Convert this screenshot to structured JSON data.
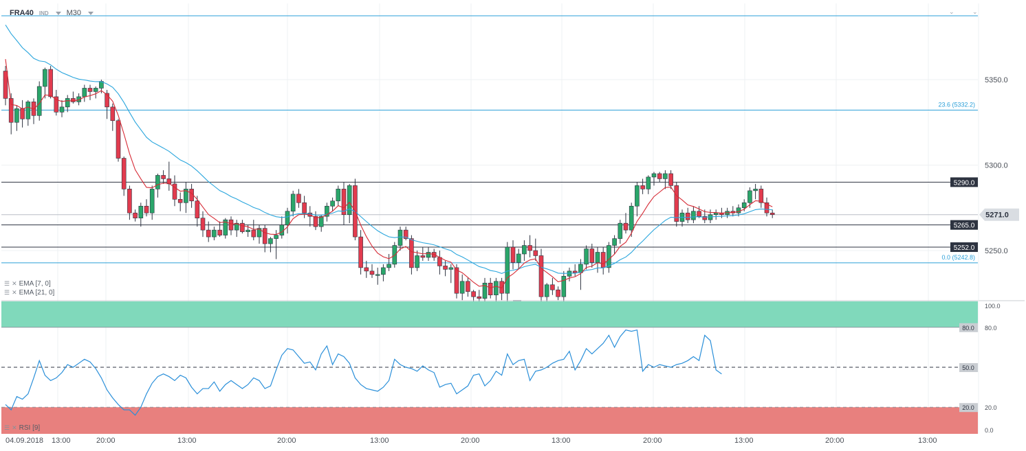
{
  "header": {
    "symbol": "FRA40",
    "symbol_sub": "IND",
    "timeframe": "M30"
  },
  "price_axis": {
    "ticks": [
      "5350.0",
      "5300.0",
      "5250.0"
    ],
    "current_price": "5271.0",
    "current_price_color": "#d9dde2"
  },
  "levels": {
    "fib_top_label": "23.6 (5332.2)",
    "fib_bottom_label": "0.0 (5242.8)",
    "resistance": "5290.0",
    "support_1": "5265.0",
    "support_2": "5252.0"
  },
  "indicators": {
    "ema_fast": "EMA [7, 0]",
    "ema_slow": "EMA [21, 0]",
    "rsi": "RSI [9]",
    "ema_fast_color": "#d62a35",
    "ema_slow_color": "#2aa6dd",
    "rsi_color": "#2a8fd9"
  },
  "rsi_axis": {
    "ticks": [
      "100.0",
      "80.0",
      "50.0",
      "20.0",
      "0.0"
    ]
  },
  "time_axis": {
    "labels": [
      "04.09.2018",
      "13:00",
      "20:00",
      "13:00",
      "20:00",
      "13:00",
      "20:00",
      "13:00",
      "20:00",
      "13:00",
      "20:00",
      "13:00"
    ]
  },
  "colors": {
    "bull": "#2aa66a",
    "bear": "#e23b4e",
    "overbought_zone": "#80d9bb",
    "oversold_zone": "#e8807e"
  },
  "chart_data": {
    "type": "candlestick",
    "ylim": [
      5215,
      5390
    ],
    "candles": [
      [
        5355,
        5358,
        5335,
        5339
      ],
      [
        5339,
        5342,
        5318,
        5325
      ],
      [
        5325,
        5335,
        5320,
        5333
      ],
      [
        5333,
        5338,
        5322,
        5327
      ],
      [
        5327,
        5338,
        5323,
        5337
      ],
      [
        5337,
        5339,
        5324,
        5329
      ],
      [
        5329,
        5349,
        5326,
        5346
      ],
      [
        5346,
        5357,
        5339,
        5356
      ],
      [
        5356,
        5358,
        5339,
        5340
      ],
      [
        5340,
        5344,
        5329,
        5331
      ],
      [
        5331,
        5338,
        5328,
        5334
      ],
      [
        5334,
        5341,
        5331,
        5339
      ],
      [
        5339,
        5343,
        5336,
        5337
      ],
      [
        5337,
        5342,
        5335,
        5340
      ],
      [
        5340,
        5347,
        5337,
        5345
      ],
      [
        5345,
        5347,
        5338,
        5343
      ],
      [
        5343,
        5346,
        5339,
        5345
      ],
      [
        5345,
        5350,
        5342,
        5349
      ],
      [
        5342,
        5344,
        5327,
        5334
      ],
      [
        5334,
        5336,
        5320,
        5326
      ],
      [
        5326,
        5327,
        5302,
        5304
      ],
      [
        5304,
        5305,
        5282,
        5286
      ],
      [
        5286,
        5288,
        5268,
        5272
      ],
      [
        5272,
        5274,
        5267,
        5269
      ],
      [
        5269,
        5278,
        5264,
        5276
      ],
      [
        5276,
        5280,
        5270,
        5272
      ],
      [
        5272,
        5288,
        5268,
        5286
      ],
      [
        5286,
        5295,
        5281,
        5294
      ],
      [
        5294,
        5297,
        5289,
        5292
      ],
      [
        5292,
        5302,
        5285,
        5289
      ],
      [
        5289,
        5294,
        5276,
        5280
      ],
      [
        5280,
        5284,
        5273,
        5278
      ],
      [
        5278,
        5290,
        5272,
        5286
      ],
      [
        5286,
        5289,
        5275,
        5279
      ],
      [
        5279,
        5282,
        5264,
        5269
      ],
      [
        5269,
        5273,
        5258,
        5262
      ],
      [
        5262,
        5267,
        5255,
        5258
      ],
      [
        5258,
        5264,
        5256,
        5262
      ],
      [
        5262,
        5267,
        5258,
        5259
      ],
      [
        5259,
        5269,
        5257,
        5268
      ],
      [
        5268,
        5270,
        5259,
        5262
      ],
      [
        5262,
        5268,
        5258,
        5266
      ],
      [
        5266,
        5268,
        5260,
        5261
      ],
      [
        5261,
        5265,
        5258,
        5262
      ],
      [
        5262,
        5268,
        5256,
        5258
      ],
      [
        5258,
        5265,
        5254,
        5263
      ],
      [
        5263,
        5265,
        5249,
        5254
      ],
      [
        5254,
        5258,
        5249,
        5257
      ],
      [
        5257,
        5262,
        5245,
        5259
      ],
      [
        5259,
        5270,
        5257,
        5265
      ],
      [
        5265,
        5275,
        5260,
        5273
      ],
      [
        5273,
        5285,
        5270,
        5283
      ],
      [
        5283,
        5286,
        5275,
        5278
      ],
      [
        5278,
        5282,
        5269,
        5272
      ],
      [
        5272,
        5276,
        5264,
        5270
      ],
      [
        5270,
        5273,
        5262,
        5264
      ],
      [
        5264,
        5271,
        5261,
        5270
      ],
      [
        5270,
        5278,
        5267,
        5276
      ],
      [
        5276,
        5281,
        5273,
        5279
      ],
      [
        5279,
        5288,
        5276,
        5286
      ],
      [
        5286,
        5290,
        5265,
        5271
      ],
      [
        5271,
        5289,
        5266,
        5288
      ],
      [
        5288,
        5292,
        5256,
        5258
      ],
      [
        5258,
        5262,
        5236,
        5240
      ],
      [
        5240,
        5244,
        5234,
        5238
      ],
      [
        5238,
        5242,
        5234,
        5236
      ],
      [
        5236,
        5240,
        5230,
        5236
      ],
      [
        5236,
        5242,
        5232,
        5240
      ],
      [
        5240,
        5248,
        5238,
        5242
      ],
      [
        5242,
        5255,
        5240,
        5253
      ],
      [
        5253,
        5264,
        5250,
        5262
      ],
      [
        5262,
        5264,
        5256,
        5257
      ],
      [
        5257,
        5259,
        5236,
        5240
      ],
      [
        5240,
        5250,
        5238,
        5247
      ],
      [
        5247,
        5252,
        5244,
        5246
      ],
      [
        5246,
        5252,
        5244,
        5249
      ],
      [
        5249,
        5251,
        5244,
        5246
      ],
      [
        5246,
        5250,
        5236,
        5241
      ],
      [
        5241,
        5244,
        5235,
        5239
      ],
      [
        5239,
        5242,
        5231,
        5240
      ],
      [
        5240,
        5242,
        5222,
        5225
      ],
      [
        5225,
        5236,
        5221,
        5232
      ],
      [
        5232,
        5234,
        5223,
        5226
      ],
      [
        5226,
        5227,
        5219,
        5223
      ],
      [
        5223,
        5227,
        5217,
        5222
      ],
      [
        5222,
        5234,
        5219,
        5231
      ],
      [
        5231,
        5234,
        5222,
        5224
      ],
      [
        5224,
        5234,
        5217,
        5232
      ],
      [
        5232,
        5234,
        5221,
        5225
      ],
      [
        5225,
        5255,
        5220,
        5252
      ],
      [
        5252,
        5256,
        5239,
        5243
      ],
      [
        5243,
        5251,
        5239,
        5248
      ],
      [
        5248,
        5256,
        5244,
        5253
      ],
      [
        5253,
        5259,
        5246,
        5250
      ],
      [
        5250,
        5257,
        5244,
        5247
      ],
      [
        5247,
        5251,
        5219,
        5223
      ],
      [
        5223,
        5231,
        5220,
        5230
      ],
      [
        5230,
        5234,
        5224,
        5227
      ],
      [
        5227,
        5229,
        5221,
        5223
      ],
      [
        5223,
        5238,
        5220,
        5235
      ],
      [
        5235,
        5240,
        5232,
        5238
      ],
      [
        5238,
        5242,
        5235,
        5237
      ],
      [
        5237,
        5245,
        5227,
        5242
      ],
      [
        5242,
        5253,
        5239,
        5251
      ],
      [
        5251,
        5254,
        5240,
        5243
      ],
      [
        5243,
        5252,
        5237,
        5249
      ],
      [
        5249,
        5252,
        5236,
        5240
      ],
      [
        5240,
        5255,
        5237,
        5253
      ],
      [
        5253,
        5259,
        5248,
        5257
      ],
      [
        5257,
        5268,
        5254,
        5266
      ],
      [
        5266,
        5272,
        5260,
        5262
      ],
      [
        5262,
        5278,
        5258,
        5276
      ],
      [
        5276,
        5290,
        5270,
        5288
      ],
      [
        5288,
        5292,
        5283,
        5286
      ],
      [
        5286,
        5294,
        5283,
        5293
      ],
      [
        5293,
        5296,
        5288,
        5295
      ],
      [
        5295,
        5296,
        5290,
        5292
      ],
      [
        5292,
        5297,
        5286,
        5295
      ],
      [
        5295,
        5297,
        5286,
        5288
      ],
      [
        5288,
        5290,
        5264,
        5267
      ],
      [
        5267,
        5274,
        5264,
        5272
      ],
      [
        5272,
        5275,
        5266,
        5268
      ],
      [
        5268,
        5276,
        5266,
        5273
      ],
      [
        5273,
        5276,
        5269,
        5270
      ],
      [
        5270,
        5274,
        5266,
        5268
      ],
      [
        5268,
        5274,
        5266,
        5271
      ],
      [
        5271,
        5274,
        5268,
        5272
      ],
      [
        5272,
        5275,
        5269,
        5271
      ],
      [
        5271,
        5275,
        5269,
        5273
      ],
      [
        5273,
        5276,
        5270,
        5272
      ],
      [
        5272,
        5277,
        5270,
        5275
      ],
      [
        5275,
        5280,
        5273,
        5278
      ],
      [
        5278,
        5287,
        5275,
        5285
      ],
      [
        5285,
        5289,
        5280,
        5286
      ],
      [
        5286,
        5288,
        5275,
        5278
      ],
      [
        5278,
        5281,
        5270,
        5272
      ],
      [
        5272,
        5274,
        5269,
        5271
      ]
    ],
    "rsi_values": [
      22,
      18,
      28,
      26,
      30,
      42,
      55,
      44,
      40,
      42,
      46,
      52,
      50,
      53,
      56,
      54,
      49,
      42,
      33,
      27,
      22,
      18,
      18,
      14,
      20,
      30,
      38,
      43,
      45,
      43,
      40,
      44,
      42,
      35,
      30,
      34,
      34,
      39,
      32,
      37,
      40,
      37,
      34,
      37,
      42,
      40,
      34,
      36,
      48,
      59,
      64,
      63,
      58,
      53,
      54,
      48,
      60,
      66,
      52,
      60,
      58,
      53,
      42,
      37,
      34,
      33,
      32,
      35,
      40,
      56,
      52,
      50,
      49,
      47,
      51,
      48,
      46,
      35,
      37,
      38,
      30,
      33,
      36,
      44,
      45,
      36,
      40,
      47,
      44,
      60,
      52,
      55,
      56,
      40,
      47,
      48,
      50,
      53,
      55,
      56,
      62,
      48,
      55,
      64,
      60,
      64,
      68,
      74,
      65,
      73,
      78,
      77,
      78,
      47,
      52,
      50,
      52,
      51,
      50,
      52,
      53,
      55,
      58,
      55,
      74,
      70,
      48,
      45
    ],
    "rsi_ylim": [
      0,
      100
    ],
    "rsi_overbought": 80,
    "rsi_mid": 50,
    "rsi_oversold": 20
  }
}
